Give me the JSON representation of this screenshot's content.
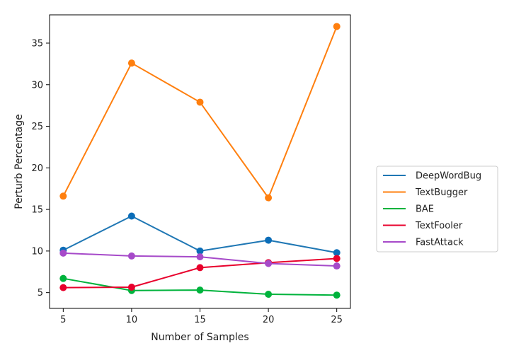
{
  "chart_data": {
    "type": "line",
    "title": "",
    "xlabel": "Number of Samples",
    "ylabel": "Perturb Percentage",
    "x": [
      5,
      10,
      15,
      20,
      25
    ],
    "xticks": [
      5,
      10,
      15,
      20,
      25
    ],
    "yticks": [
      5,
      10,
      15,
      20,
      25,
      30,
      35
    ],
    "xlim": [
      4.0,
      26.0
    ],
    "ylim": [
      3.1,
      38.4
    ],
    "grid": false,
    "legend_position": "right",
    "series": [
      {
        "name": "DeepWordBug",
        "color": "#1f77b4",
        "marker_color": "#0b6db8",
        "values": [
          10.1,
          14.2,
          10.0,
          11.3,
          9.8
        ]
      },
      {
        "name": "TextBugger",
        "color": "#ff7f0e",
        "marker_color": "#ff7f0e",
        "values": [
          16.6,
          32.6,
          27.9,
          16.4,
          37.0
        ]
      },
      {
        "name": "BAE",
        "color": "#00b33c",
        "marker_color": "#00b33c",
        "values": [
          6.7,
          5.25,
          5.3,
          4.8,
          4.7
        ]
      },
      {
        "name": "TextFooler",
        "color": "#e8002c",
        "marker_color": "#e8002c",
        "values": [
          5.6,
          5.65,
          8.0,
          8.6,
          9.1
        ]
      },
      {
        "name": "FastAttack",
        "color": "#a64ac9",
        "marker_color": "#a64ac9",
        "values": [
          9.75,
          9.4,
          9.3,
          8.5,
          8.2
        ]
      }
    ]
  }
}
